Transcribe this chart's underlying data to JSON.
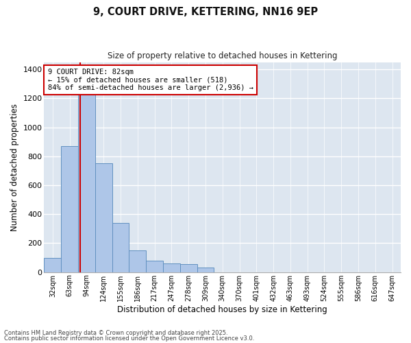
{
  "title1": "9, COURT DRIVE, KETTERING, NN16 9EP",
  "title2": "Size of property relative to detached houses in Kettering",
  "xlabel": "Distribution of detached houses by size in Kettering",
  "ylabel": "Number of detached properties",
  "bins": [
    "32sqm",
    "63sqm",
    "94sqm",
    "124sqm",
    "155sqm",
    "186sqm",
    "217sqm",
    "247sqm",
    "278sqm",
    "309sqm",
    "340sqm",
    "370sqm",
    "401sqm",
    "432sqm",
    "463sqm",
    "493sqm",
    "524sqm",
    "555sqm",
    "586sqm",
    "616sqm",
    "647sqm"
  ],
  "values": [
    100,
    870,
    1230,
    750,
    340,
    150,
    80,
    60,
    55,
    30,
    0,
    0,
    0,
    0,
    0,
    0,
    0,
    0,
    0,
    0,
    0
  ],
  "bar_color": "#aec6e8",
  "bar_edge_color": "#6090c0",
  "annotation_text": "9 COURT DRIVE: 82sqm\n← 15% of detached houses are smaller (518)\n84% of semi-detached houses are larger (2,936) →",
  "annotation_box_color": "#ffffff",
  "annotation_box_edge": "#cc0000",
  "ylim": [
    0,
    1450
  ],
  "yticks": [
    0,
    200,
    400,
    600,
    800,
    1000,
    1200,
    1400
  ],
  "bg_color": "#dde6f0",
  "fig_color": "#ffffff",
  "footer1": "Contains HM Land Registry data © Crown copyright and database right 2025.",
  "footer2": "Contains public sector information licensed under the Open Government Licence v3.0."
}
